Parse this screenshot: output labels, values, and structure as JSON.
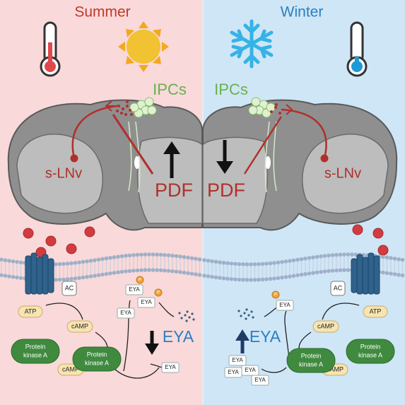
{
  "summer": {
    "title": "Summer",
    "ipcs": "IPCs",
    "neuron": "s-LNv",
    "peptide": "PDF",
    "output": "EYA",
    "ac": "AC",
    "atp": "ATP",
    "camp": [
      "cAMP",
      "cAMP"
    ],
    "pka": [
      [
        "Protein",
        "kinase A"
      ],
      [
        "Protein",
        "kinase A"
      ]
    ],
    "phospho": [
      "P",
      "P"
    ],
    "eya": [
      "EYA",
      "EYA",
      "EYA",
      "EYA"
    ]
  },
  "winter": {
    "title": "Winter",
    "ipcs": "IPCs",
    "neuron": "s-LNv",
    "peptide": "PDF",
    "output": "EYA",
    "ac": "AC",
    "atp": "ATP",
    "camp": [
      "cAMP",
      "cAMP"
    ],
    "pka": [
      [
        "Protein",
        "kinase A"
      ],
      [
        "Protein",
        "kinase A"
      ]
    ],
    "phospho": [
      "P"
    ],
    "eya": [
      "EYA",
      "EYA",
      "EYA",
      "EYA",
      "EYA"
    ]
  }
}
